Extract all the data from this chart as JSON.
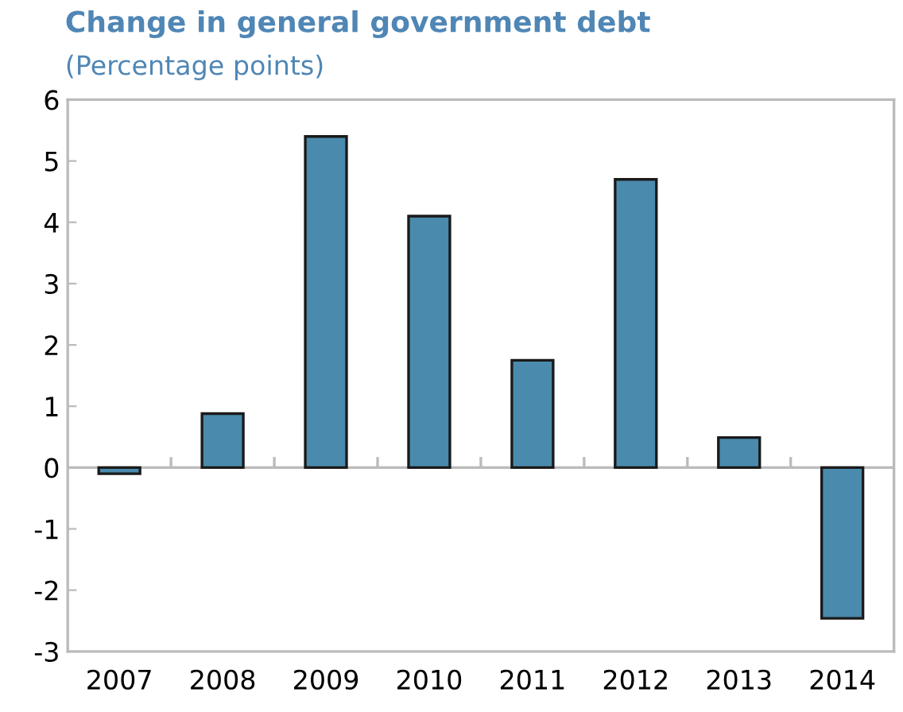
{
  "chart_data": {
    "type": "bar",
    "title": "Change in general government debt",
    "subtitle": "(Percentage points)",
    "categories": [
      "2007",
      "2008",
      "2009",
      "2010",
      "2011",
      "2012",
      "2013",
      "2014"
    ],
    "values": [
      -0.1,
      0.88,
      5.4,
      4.1,
      1.75,
      4.7,
      0.49,
      -2.46
    ],
    "color": "#4a8aad",
    "ylim": [
      -3,
      6
    ],
    "yticks": [
      {
        "value": -3,
        "label": "-3"
      },
      {
        "value": -2,
        "label": "-2"
      },
      {
        "value": -1,
        "label": "-1"
      },
      0,
      1,
      2,
      3,
      4,
      5,
      6
    ],
    "legend": false
  }
}
